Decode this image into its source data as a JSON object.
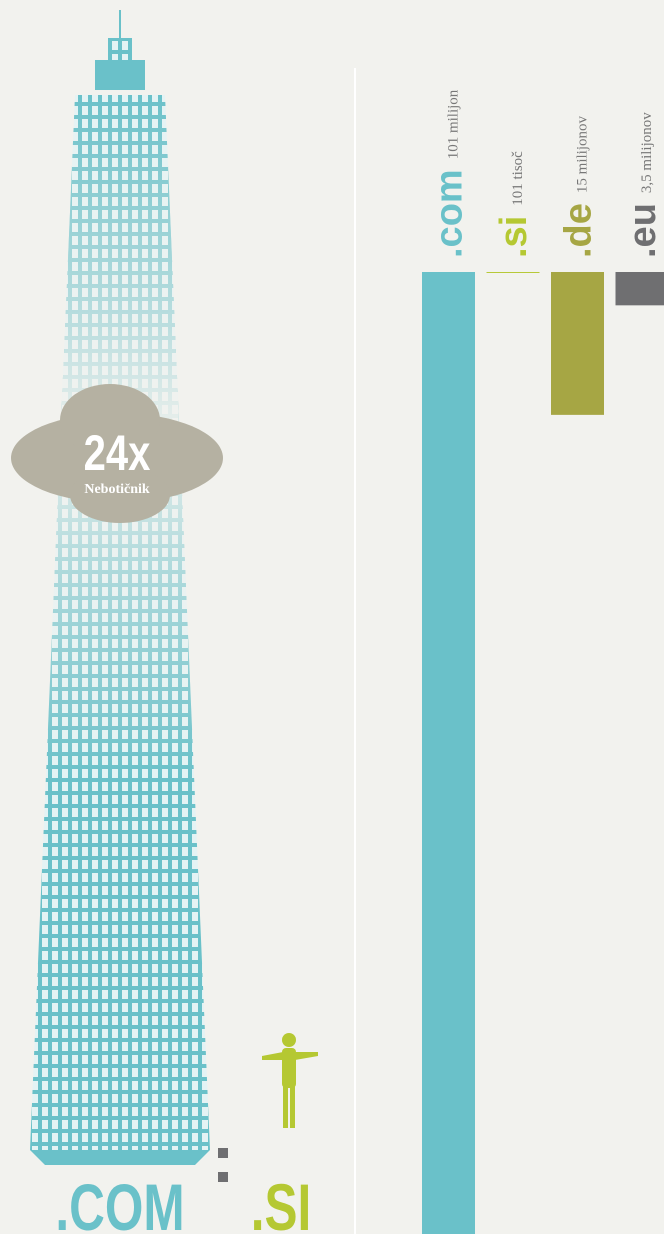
{
  "chart_data": {
    "type": "bar",
    "categories": [
      ".com",
      ".si",
      ".de",
      ".eu"
    ],
    "values": [
      101,
      0.101,
      15,
      3.5
    ],
    "value_labels": [
      "101 milijon",
      "101 tisoč",
      "15 milijonov",
      "3,5 milijonov"
    ],
    "colors": [
      "#6ac1c9",
      "#b5c832",
      "#a6a644",
      "#6f6f71"
    ],
    "ylim": [
      0,
      101
    ]
  },
  "infographic": {
    "ratio": "24x",
    "caption": "Nebotičnik",
    "left_label": ".COM",
    "right_label": ".SI"
  }
}
